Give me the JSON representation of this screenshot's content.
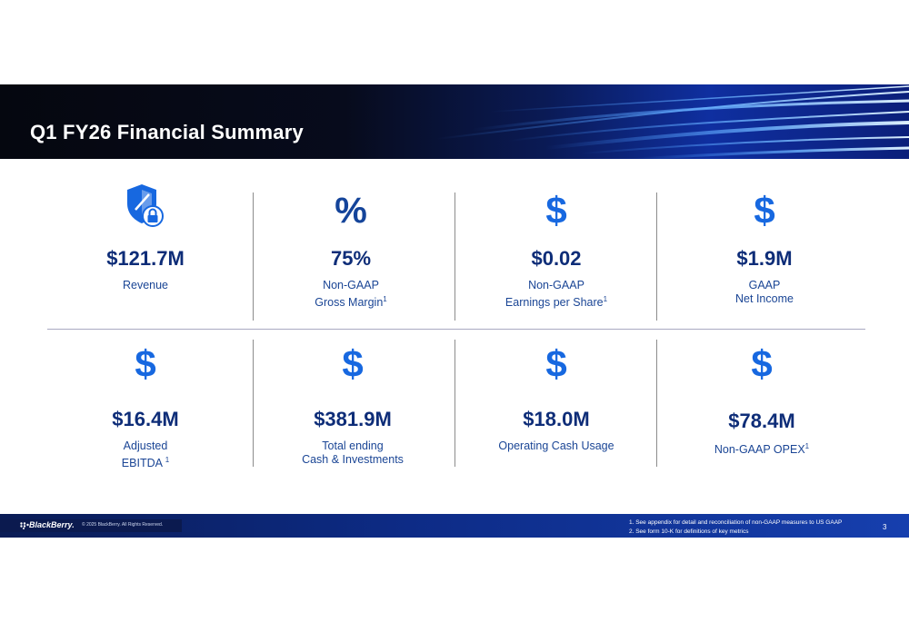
{
  "slide": {
    "title": "Q1 FY26 Financial Summary",
    "page_number": "3"
  },
  "metrics_top": [
    {
      "icon": "shield-lock-icon",
      "value": "$121.7M",
      "label_line1": "Revenue",
      "label_line2": "",
      "sup": ""
    },
    {
      "icon": "percent-icon",
      "value": "75%",
      "label_line1": "Non-GAAP",
      "label_line2": "Gross Margin",
      "sup": "1"
    },
    {
      "icon": "dollar-icon",
      "value": "$0.02",
      "label_line1": "Non-GAAP",
      "label_line2": "Earnings per Share",
      "sup": "1"
    },
    {
      "icon": "dollar-icon",
      "value": "$1.9M",
      "label_line1": "GAAP",
      "label_line2": "Net Income",
      "sup": ""
    }
  ],
  "metrics_bottom": [
    {
      "icon": "dollar-icon",
      "value": "$16.4M",
      "label_line1": "Adjusted",
      "label_line2": "EBITDA",
      "sup": "1"
    },
    {
      "icon": "dollar-icon",
      "value": "$381.9M",
      "label_line1": "Total ending",
      "label_line2": "Cash & Investments",
      "sup": ""
    },
    {
      "icon": "dollar-icon",
      "value": "$18.0M",
      "label_line1": "Operating Cash Usage",
      "label_line2": "",
      "sup": ""
    },
    {
      "icon": "dollar-icon",
      "value": "$78.4M",
      "label_line1": "Non-GAAP OPEX",
      "label_line2": "",
      "sup": "1"
    }
  ],
  "icons": {
    "dollar_glyph": "$",
    "percent_glyph": "%"
  },
  "footer": {
    "brand": "BlackBerry.",
    "copyright": "© 2025 BlackBerry. All Rights Reserved.",
    "footnote1": "1. See appendix for detail and reconciliation of non-GAAP measures to US GAAP",
    "footnote2": "2. See form 10-K for definitions of key metrics"
  },
  "colors": {
    "accent_blue": "#1768e0",
    "value_navy": "#0e2d78",
    "label_blue": "#1a4595"
  }
}
